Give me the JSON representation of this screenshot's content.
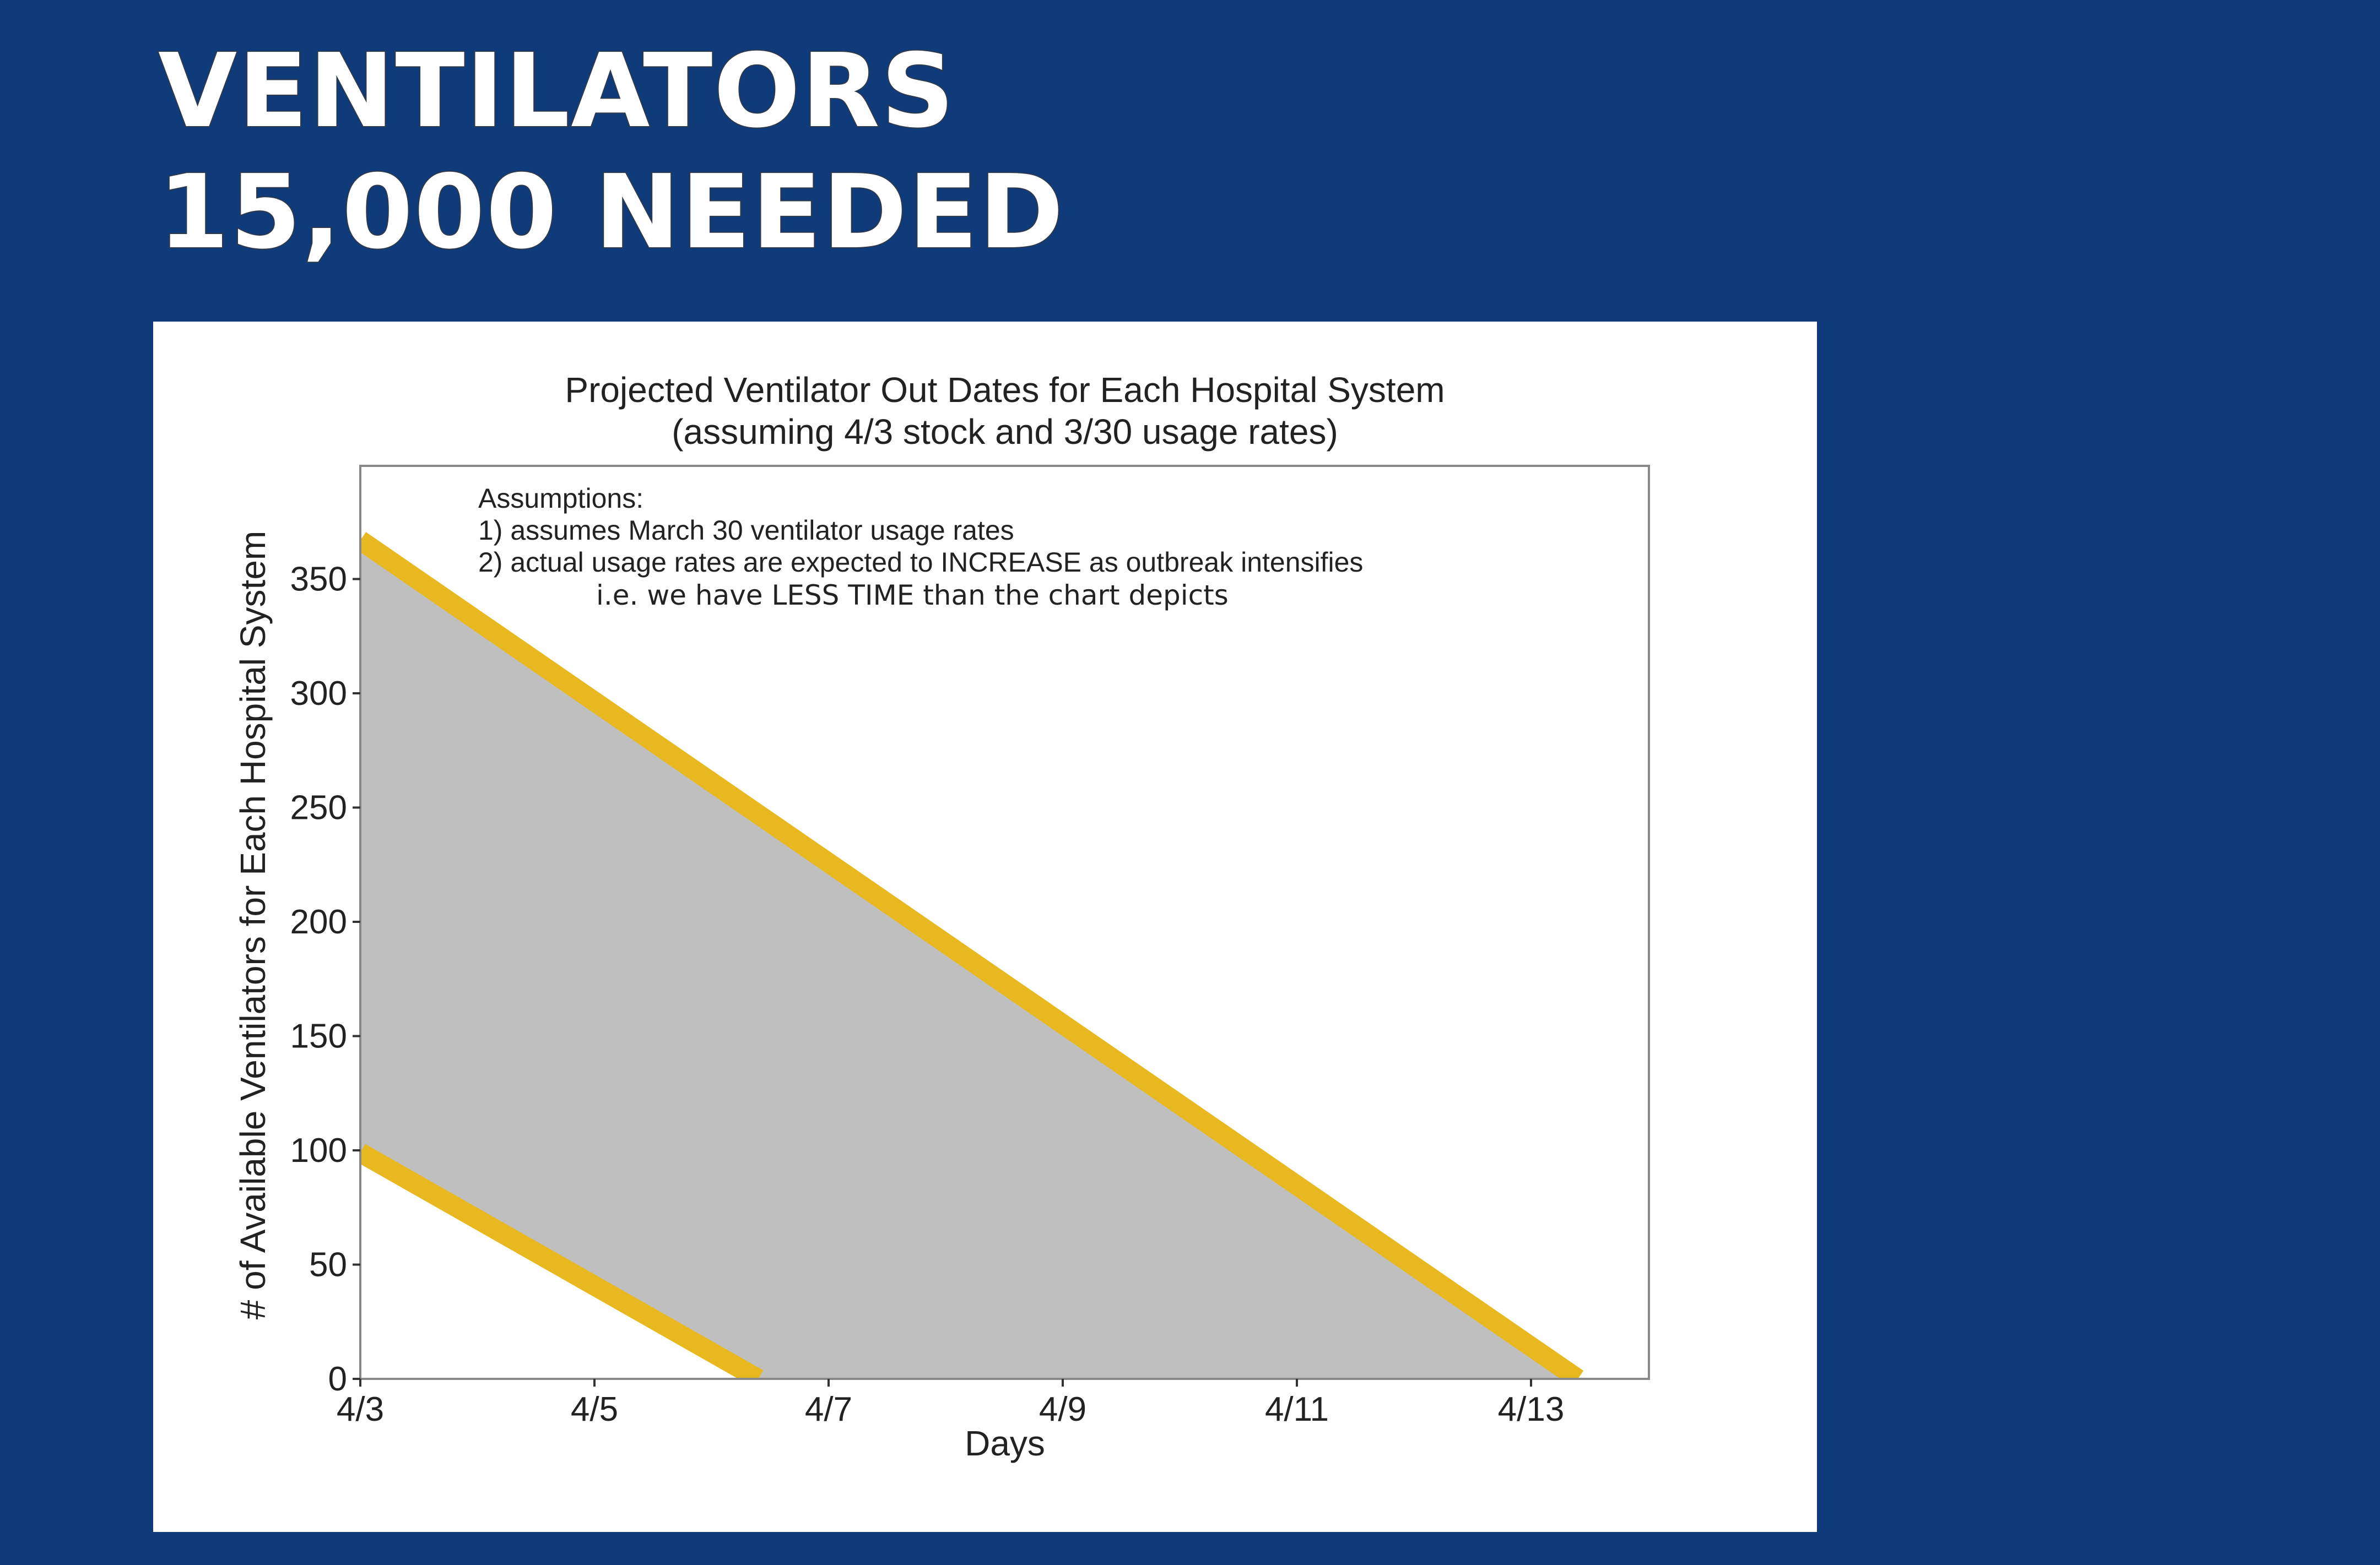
{
  "header": {
    "line1": "VENTILATORS",
    "line2": "15,000 NEEDED"
  },
  "chart_data": {
    "type": "area",
    "title": "Projected Ventilator Out Dates for Each Hospital System",
    "subtitle": "(assuming 4/3 stock and 3/30 usage rates)",
    "xlabel": "Days",
    "ylabel": "# of Available Ventilators for Each Hospital System",
    "x_ticks": [
      {
        "label": "4/3",
        "value": 0
      },
      {
        "label": "4/5",
        "value": 2
      },
      {
        "label": "4/7",
        "value": 4
      },
      {
        "label": "4/9",
        "value": 6
      },
      {
        "label": "4/11",
        "value": 8
      },
      {
        "label": "4/13",
        "value": 10
      }
    ],
    "y_ticks": [
      0,
      50,
      100,
      150,
      200,
      250,
      300,
      350
    ],
    "xlim": [
      0,
      11
    ],
    "ylim": [
      0,
      400
    ],
    "series": [
      {
        "x": [
          0,
          10.4
        ],
        "y": [
          367,
          0
        ]
      },
      {
        "x": [
          0,
          3.4
        ],
        "y": [
          99,
          0
        ]
      }
    ],
    "band_fill": "between series",
    "grid": false,
    "colors": {
      "line": "#e8b820",
      "band": "#bfbfbf",
      "axes": "#888888",
      "background": "#0f3b7a"
    },
    "annotations": {
      "heading": "Assumptions:",
      "line1": "1) assumes March 30 ventilator usage rates",
      "line2": "2) actual usage rates are expected to INCREASE as outbreak intensifies",
      "line3": "i.e. we have LESS TIME than the chart depicts"
    }
  }
}
